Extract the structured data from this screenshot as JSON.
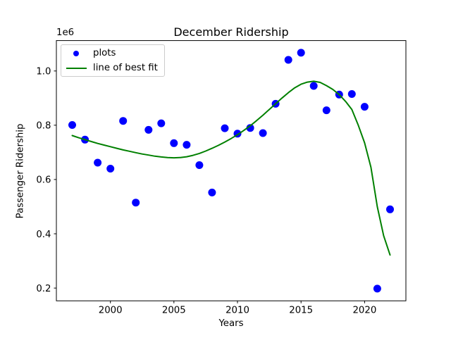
{
  "chart_data": {
    "type": "scatter",
    "title": "December Ridership",
    "xlabel": "Years",
    "ylabel": "Passenger Ridership",
    "y_scale_label": "1e6",
    "grid": false,
    "legend_position": "upper left",
    "xlim": [
      1995.75,
      2023.25
    ],
    "ylim": [
      153000,
      1112000
    ],
    "x_ticks": [
      2000,
      2005,
      2010,
      2015,
      2020
    ],
    "y_ticks": [
      200000,
      400000,
      600000,
      800000,
      1000000
    ],
    "y_tick_labels": [
      "0.2",
      "0.4",
      "0.6",
      "0.8",
      "1.0"
    ],
    "frame_color": "#000000",
    "series": [
      {
        "name": "plots",
        "type": "scatter",
        "color": "#0000ff",
        "marker": "dot",
        "x": [
          1997,
          1998,
          1999,
          2000,
          2001,
          2002,
          2003,
          2004,
          2005,
          2006,
          2007,
          2008,
          2009,
          2010,
          2011,
          2012,
          2013,
          2014,
          2015,
          2016,
          2017,
          2018,
          2019,
          2020,
          2021,
          2022
        ],
        "y": [
          801000,
          747000,
          662000,
          640000,
          816000,
          515000,
          783000,
          807000,
          734000,
          728000,
          653000,
          552000,
          789000,
          769000,
          790000,
          771000,
          879000,
          1041000,
          1067000,
          945000,
          855000,
          913000,
          915000,
          868000,
          198000,
          490000
        ]
      },
      {
        "name": "line of best fit",
        "type": "line",
        "color": "#008000",
        "marker": "line",
        "x": [
          1997,
          1997.5,
          1998,
          1998.5,
          1999,
          1999.5,
          2000,
          2000.5,
          2001,
          2001.5,
          2002,
          2002.5,
          2003,
          2003.5,
          2004,
          2004.5,
          2005,
          2005.5,
          2006,
          2006.5,
          2007,
          2007.5,
          2008,
          2008.5,
          2009,
          2009.5,
          2010,
          2010.5,
          2011,
          2011.5,
          2012,
          2012.5,
          2013,
          2013.5,
          2014,
          2014.5,
          2015,
          2015.5,
          2016,
          2016.5,
          2017,
          2017.5,
          2018,
          2018.5,
          2019,
          2019.5,
          2020,
          2020.5,
          2021,
          2021.5,
          2022
        ],
        "y": [
          762000,
          754000,
          747000,
          740000,
          733000,
          727000,
          721000,
          715000,
          709000,
          704000,
          699000,
          694000,
          690000,
          686000,
          683000,
          681000,
          680000,
          681000,
          684000,
          689000,
          696000,
          705000,
          715000,
          726000,
          738000,
          751000,
          765000,
          781000,
          798000,
          817000,
          837000,
          858000,
          879000,
          900000,
          920000,
          938000,
          951000,
          959000,
          962000,
          958000,
          946000,
          932000,
          913000,
          888000,
          858000,
          800000,
          735000,
          645000,
          500000,
          393000,
          322000
        ]
      }
    ]
  }
}
